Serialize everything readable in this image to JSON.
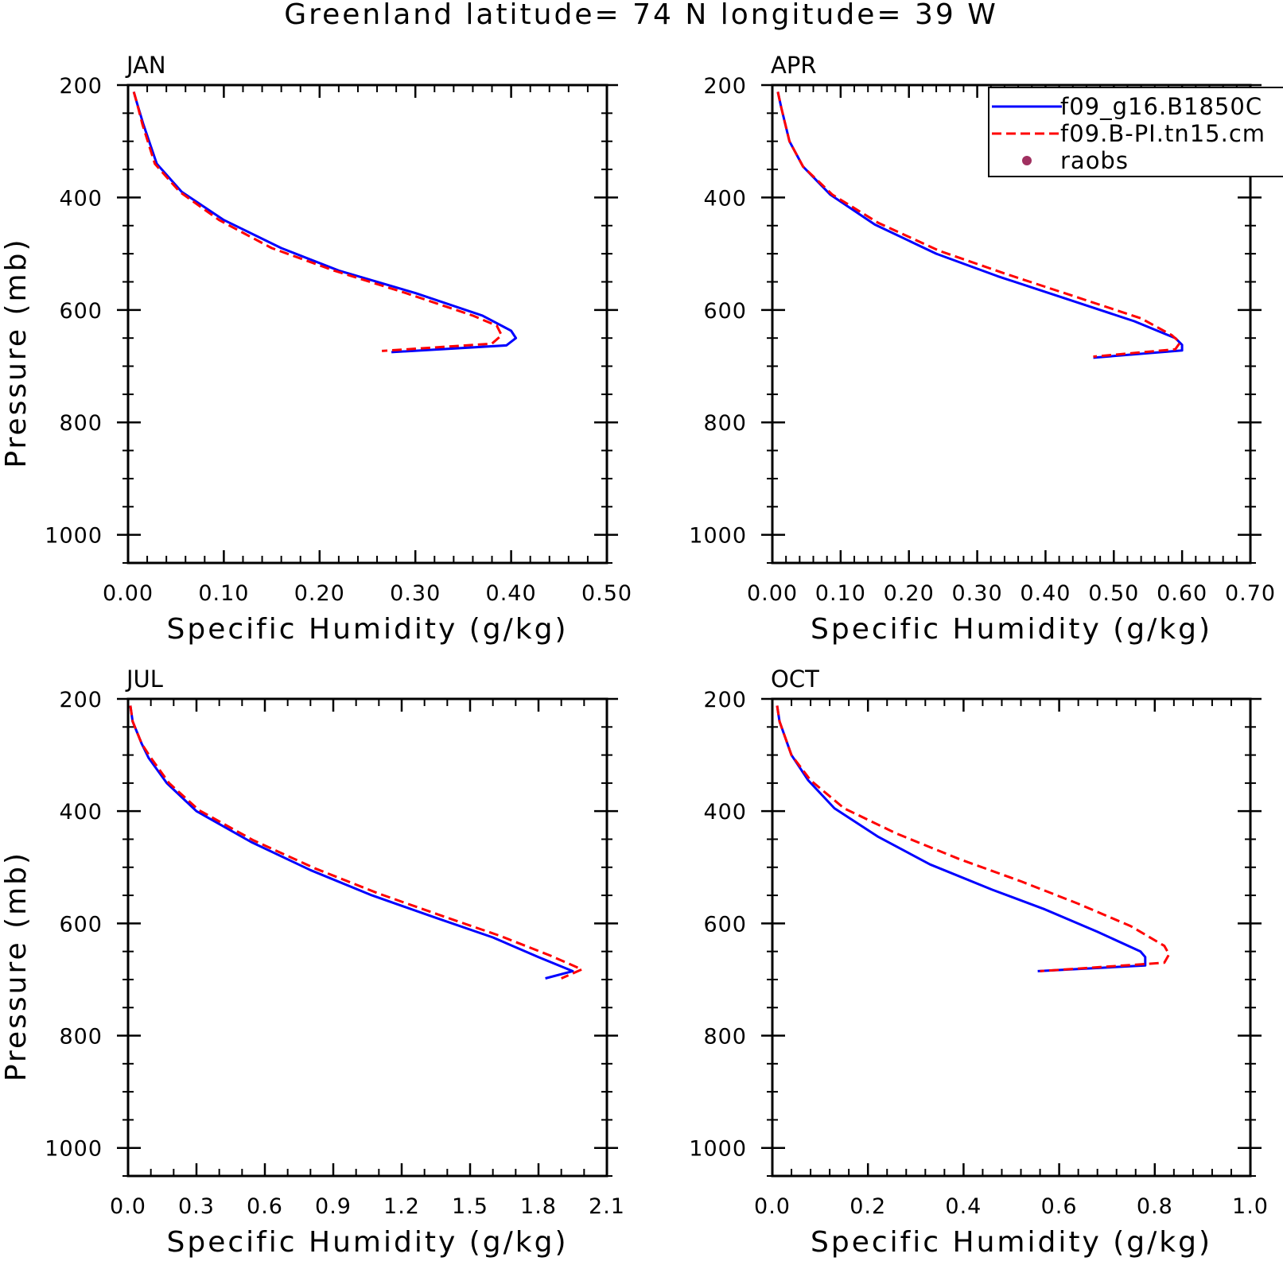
{
  "title": "Greenland  latitude= 74 N longitude= 39 W",
  "legend": {
    "entries": [
      {
        "label": "f09_g16.B1850C",
        "color": "#0000ff",
        "style": "solid"
      },
      {
        "label": "f09.B-PI.tn15.cm",
        "color": "#ff0000",
        "style": "dashed"
      },
      {
        "label": "raobs",
        "color": "#a03060",
        "style": "marker"
      }
    ]
  },
  "chart_data": [
    {
      "type": "line",
      "panel": "JAN",
      "xlabel": "Specific Humidity (g/kg)",
      "ylabel": "Pressure (mb)",
      "xlim": [
        0,
        0.5
      ],
      "ylim": [
        1050,
        200
      ],
      "y_reversed": true,
      "xticks": [
        "0.00",
        "0.10",
        "0.20",
        "0.30",
        "0.40",
        "0.50"
      ],
      "xtick_values": [
        0,
        0.1,
        0.2,
        0.3,
        0.4,
        0.5
      ],
      "yticks": [
        "200",
        "400",
        "600",
        "800",
        "1000"
      ],
      "ytick_values": [
        200,
        400,
        600,
        800,
        1000
      ],
      "series": [
        {
          "name": "f09_g16.B1850C",
          "x": [
            0.006,
            0.009,
            0.016,
            0.03,
            0.056,
            0.1,
            0.16,
            0.22,
            0.3,
            0.37,
            0.4,
            0.405,
            0.395,
            0.275
          ],
          "y": [
            212,
            230,
            270,
            340,
            390,
            440,
            490,
            530,
            570,
            610,
            637,
            650,
            663,
            675
          ]
        },
        {
          "name": "f09.B-PI.tn15.cm",
          "x": [
            0.006,
            0.009,
            0.015,
            0.028,
            0.054,
            0.095,
            0.15,
            0.215,
            0.29,
            0.36,
            0.385,
            0.39,
            0.38,
            0.265
          ],
          "y": [
            212,
            230,
            270,
            340,
            390,
            440,
            490,
            530,
            570,
            610,
            628,
            645,
            660,
            673
          ]
        }
      ]
    },
    {
      "type": "line",
      "panel": "APR",
      "xlabel": "Specific Humidity (g/kg)",
      "ylabel": "",
      "xlim": [
        0,
        0.7
      ],
      "ylim": [
        1050,
        200
      ],
      "y_reversed": true,
      "xticks": [
        "0.00",
        "0.10",
        "0.20",
        "0.30",
        "0.40",
        "0.50",
        "0.60",
        "0.70"
      ],
      "xtick_values": [
        0,
        0.1,
        0.2,
        0.3,
        0.4,
        0.5,
        0.6,
        0.7
      ],
      "yticks": [
        "200",
        "400",
        "600",
        "800",
        "1000"
      ],
      "ytick_values": [
        200,
        400,
        600,
        800,
        1000
      ],
      "series": [
        {
          "name": "f09_g16.B1850C",
          "x": [
            0.008,
            0.013,
            0.025,
            0.045,
            0.085,
            0.15,
            0.24,
            0.33,
            0.43,
            0.53,
            0.59,
            0.6,
            0.6,
            0.47
          ],
          "y": [
            212,
            240,
            300,
            345,
            395,
            448,
            500,
            540,
            580,
            620,
            650,
            662,
            672,
            685
          ]
        },
        {
          "name": "f09.B-PI.tn15.cm",
          "x": [
            0.008,
            0.013,
            0.025,
            0.045,
            0.088,
            0.155,
            0.245,
            0.34,
            0.44,
            0.54,
            0.585,
            0.597,
            0.59,
            0.47
          ],
          "y": [
            212,
            240,
            300,
            345,
            395,
            445,
            495,
            535,
            575,
            615,
            645,
            658,
            670,
            683
          ]
        }
      ]
    },
    {
      "type": "line",
      "panel": "JUL",
      "xlabel": "Specific Humidity (g/kg)",
      "ylabel": "Pressure (mb)",
      "xlim": [
        0,
        2.1
      ],
      "ylim": [
        1050,
        200
      ],
      "y_reversed": true,
      "xticks": [
        "0.0",
        "0.3",
        "0.6",
        "0.9",
        "1.2",
        "1.5",
        "1.8",
        "2.1"
      ],
      "xtick_values": [
        0,
        0.3,
        0.6,
        0.9,
        1.2,
        1.5,
        1.8,
        2.1
      ],
      "yticks": [
        "200",
        "400",
        "600",
        "800",
        "1000"
      ],
      "ytick_values": [
        200,
        400,
        600,
        800,
        1000
      ],
      "series": [
        {
          "name": "f09_g16.B1850C",
          "x": [
            0.01,
            0.02,
            0.06,
            0.09,
            0.17,
            0.3,
            0.54,
            0.8,
            1.07,
            1.35,
            1.6,
            1.8,
            1.95,
            1.83
          ],
          "y": [
            212,
            240,
            280,
            305,
            350,
            400,
            455,
            505,
            550,
            590,
            625,
            660,
            685,
            698
          ]
        },
        {
          "name": "f09.B-PI.tn15.cm",
          "x": [
            0.01,
            0.02,
            0.06,
            0.1,
            0.18,
            0.31,
            0.55,
            0.82,
            1.1,
            1.38,
            1.63,
            1.85,
            1.99,
            1.9
          ],
          "y": [
            212,
            240,
            280,
            305,
            350,
            398,
            452,
            502,
            547,
            587,
            622,
            657,
            682,
            698
          ]
        }
      ]
    },
    {
      "type": "line",
      "panel": "OCT",
      "xlabel": "Specific Humidity (g/kg)",
      "ylabel": "",
      "xlim": [
        0,
        1.0
      ],
      "ylim": [
        1050,
        200
      ],
      "y_reversed": true,
      "xticks": [
        "0.0",
        "0.2",
        "0.4",
        "0.6",
        "0.8",
        "1.0"
      ],
      "xtick_values": [
        0,
        0.2,
        0.4,
        0.6,
        0.8,
        1.0
      ],
      "yticks": [
        "200",
        "400",
        "600",
        "800",
        "1000"
      ],
      "ytick_values": [
        200,
        400,
        600,
        800,
        1000
      ],
      "series": [
        {
          "name": "f09_g16.B1850C",
          "x": [
            0.01,
            0.015,
            0.04,
            0.075,
            0.13,
            0.22,
            0.33,
            0.46,
            0.57,
            0.68,
            0.77,
            0.78,
            0.78,
            0.555
          ],
          "y": [
            212,
            240,
            300,
            345,
            395,
            445,
            495,
            540,
            575,
            615,
            650,
            660,
            675,
            685
          ]
        },
        {
          "name": "f09.B-PI.tn15.cm",
          "x": [
            0.01,
            0.015,
            0.04,
            0.08,
            0.15,
            0.26,
            0.39,
            0.52,
            0.64,
            0.75,
            0.82,
            0.83,
            0.82,
            0.56
          ],
          "y": [
            212,
            240,
            300,
            345,
            395,
            440,
            485,
            525,
            565,
            605,
            640,
            655,
            670,
            685
          ]
        }
      ]
    }
  ]
}
